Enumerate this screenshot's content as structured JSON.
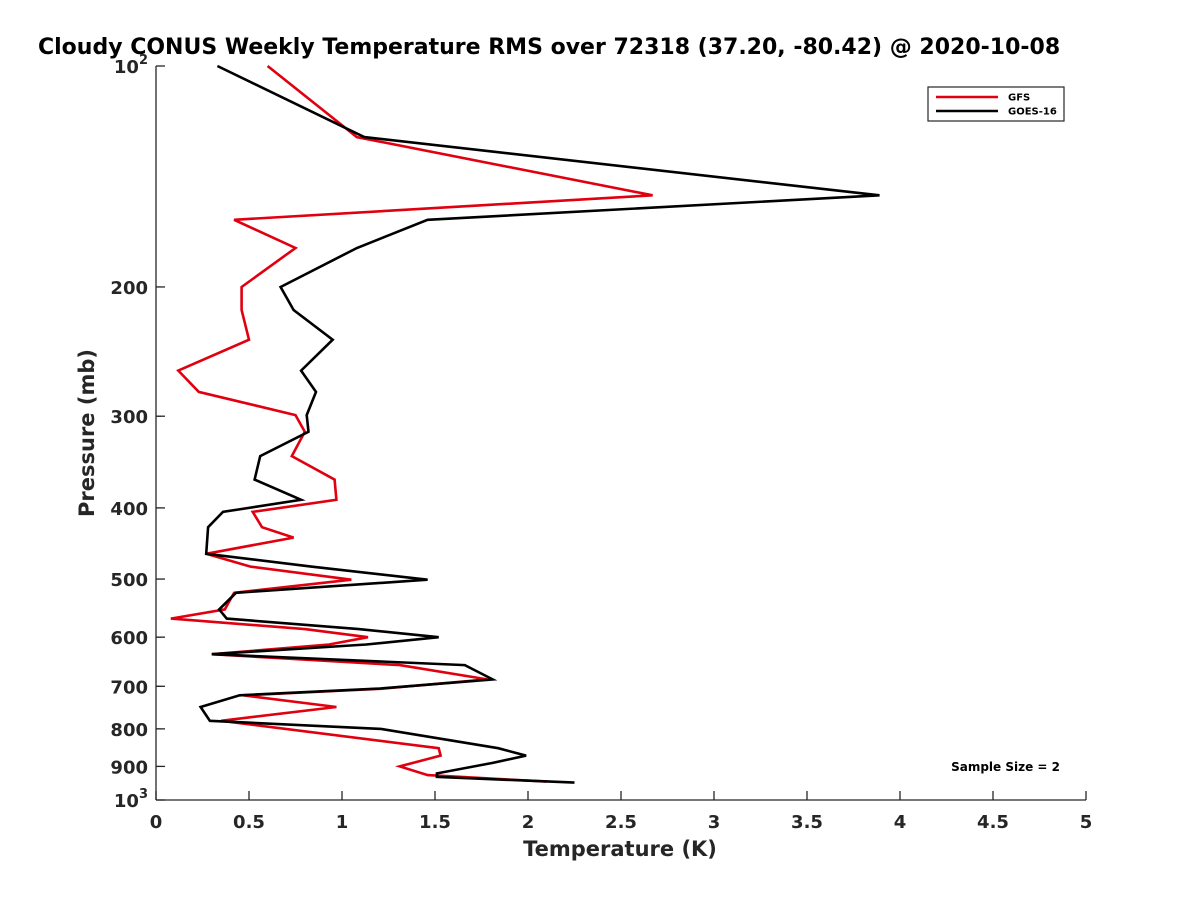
{
  "chart_data": {
    "type": "line",
    "title": "Cloudy CONUS Weekly Temperature RMS over 72318 (37.20, -80.42) @ 2020-10-08",
    "xlabel": "Temperature (K)",
    "ylabel": "Pressure (mb)",
    "xlim": [
      0,
      5
    ],
    "ylim": [
      100,
      1000
    ],
    "y_scale": "log",
    "y_reversed": true,
    "grid": false,
    "legend_position": "top-right",
    "x_ticks": [
      "0",
      "0.5",
      "1",
      "1.5",
      "2",
      "2.5",
      "3",
      "3.5",
      "4",
      "4.5",
      "5"
    ],
    "y_ticks": [
      {
        "value": 100,
        "base": "10",
        "exp": "2"
      },
      {
        "value": 200,
        "label": "200"
      },
      {
        "value": 300,
        "label": "300"
      },
      {
        "value": 400,
        "label": "400"
      },
      {
        "value": 500,
        "label": "500"
      },
      {
        "value": 600,
        "label": "600"
      },
      {
        "value": 700,
        "label": "700"
      },
      {
        "value": 800,
        "label": "800"
      },
      {
        "value": 900,
        "label": "900"
      },
      {
        "value": 1000,
        "base": "10",
        "exp": "3"
      }
    ],
    "annotation": "Sample Size = 2",
    "series": [
      {
        "name": "GFS",
        "color": "#e0000f",
        "points": [
          [
            0.6,
            100
          ],
          [
            1.08,
            125
          ],
          [
            2.67,
            150
          ],
          [
            0.42,
            162
          ],
          [
            0.75,
            177
          ],
          [
            0.46,
            200
          ],
          [
            0.46,
            215
          ],
          [
            0.5,
            236
          ],
          [
            0.12,
            260
          ],
          [
            0.23,
            278
          ],
          [
            0.75,
            299
          ],
          [
            0.8,
            315
          ],
          [
            0.73,
            340
          ],
          [
            0.96,
            366
          ],
          [
            0.97,
            390
          ],
          [
            0.52,
            405
          ],
          [
            0.57,
            425
          ],
          [
            0.74,
            439
          ],
          [
            0.27,
            462
          ],
          [
            0.51,
            481
          ],
          [
            1.05,
            501
          ],
          [
            0.42,
            522
          ],
          [
            0.37,
            550
          ],
          [
            0.08,
            566
          ],
          [
            0.8,
            585
          ],
          [
            1.14,
            600
          ],
          [
            0.93,
            614
          ],
          [
            0.3,
            633
          ],
          [
            1.31,
            655
          ],
          [
            1.78,
            685
          ],
          [
            1.22,
            705
          ],
          [
            0.47,
            720
          ],
          [
            0.97,
            747
          ],
          [
            0.35,
            780
          ],
          [
            1.52,
            850
          ],
          [
            1.53,
            870
          ],
          [
            1.31,
            900
          ],
          [
            1.46,
            925
          ],
          [
            2.1,
            944
          ]
        ]
      },
      {
        "name": "GOES-16",
        "color": "#000000",
        "points": [
          [
            0.33,
            100
          ],
          [
            1.12,
            125
          ],
          [
            3.89,
            150
          ],
          [
            1.46,
            162
          ],
          [
            1.08,
            177
          ],
          [
            0.67,
            200
          ],
          [
            0.74,
            215
          ],
          [
            0.95,
            236
          ],
          [
            0.78,
            260
          ],
          [
            0.86,
            278
          ],
          [
            0.81,
            299
          ],
          [
            0.82,
            315
          ],
          [
            0.56,
            340
          ],
          [
            0.53,
            366
          ],
          [
            0.78,
            390
          ],
          [
            0.36,
            405
          ],
          [
            0.28,
            425
          ],
          [
            0.27,
            462
          ],
          [
            0.84,
            481
          ],
          [
            1.46,
            501
          ],
          [
            0.43,
            522
          ],
          [
            0.34,
            550
          ],
          [
            0.38,
            566
          ],
          [
            1.09,
            585
          ],
          [
            1.52,
            600
          ],
          [
            1.13,
            614
          ],
          [
            0.3,
            633
          ],
          [
            1.66,
            655
          ],
          [
            1.81,
            685
          ],
          [
            1.2,
            705
          ],
          [
            0.45,
            720
          ],
          [
            0.24,
            747
          ],
          [
            0.29,
            780
          ],
          [
            1.21,
            800
          ],
          [
            1.84,
            850
          ],
          [
            1.99,
            870
          ],
          [
            1.81,
            890
          ],
          [
            1.51,
            920
          ],
          [
            1.51,
            930
          ],
          [
            2.25,
            947
          ]
        ]
      }
    ]
  }
}
